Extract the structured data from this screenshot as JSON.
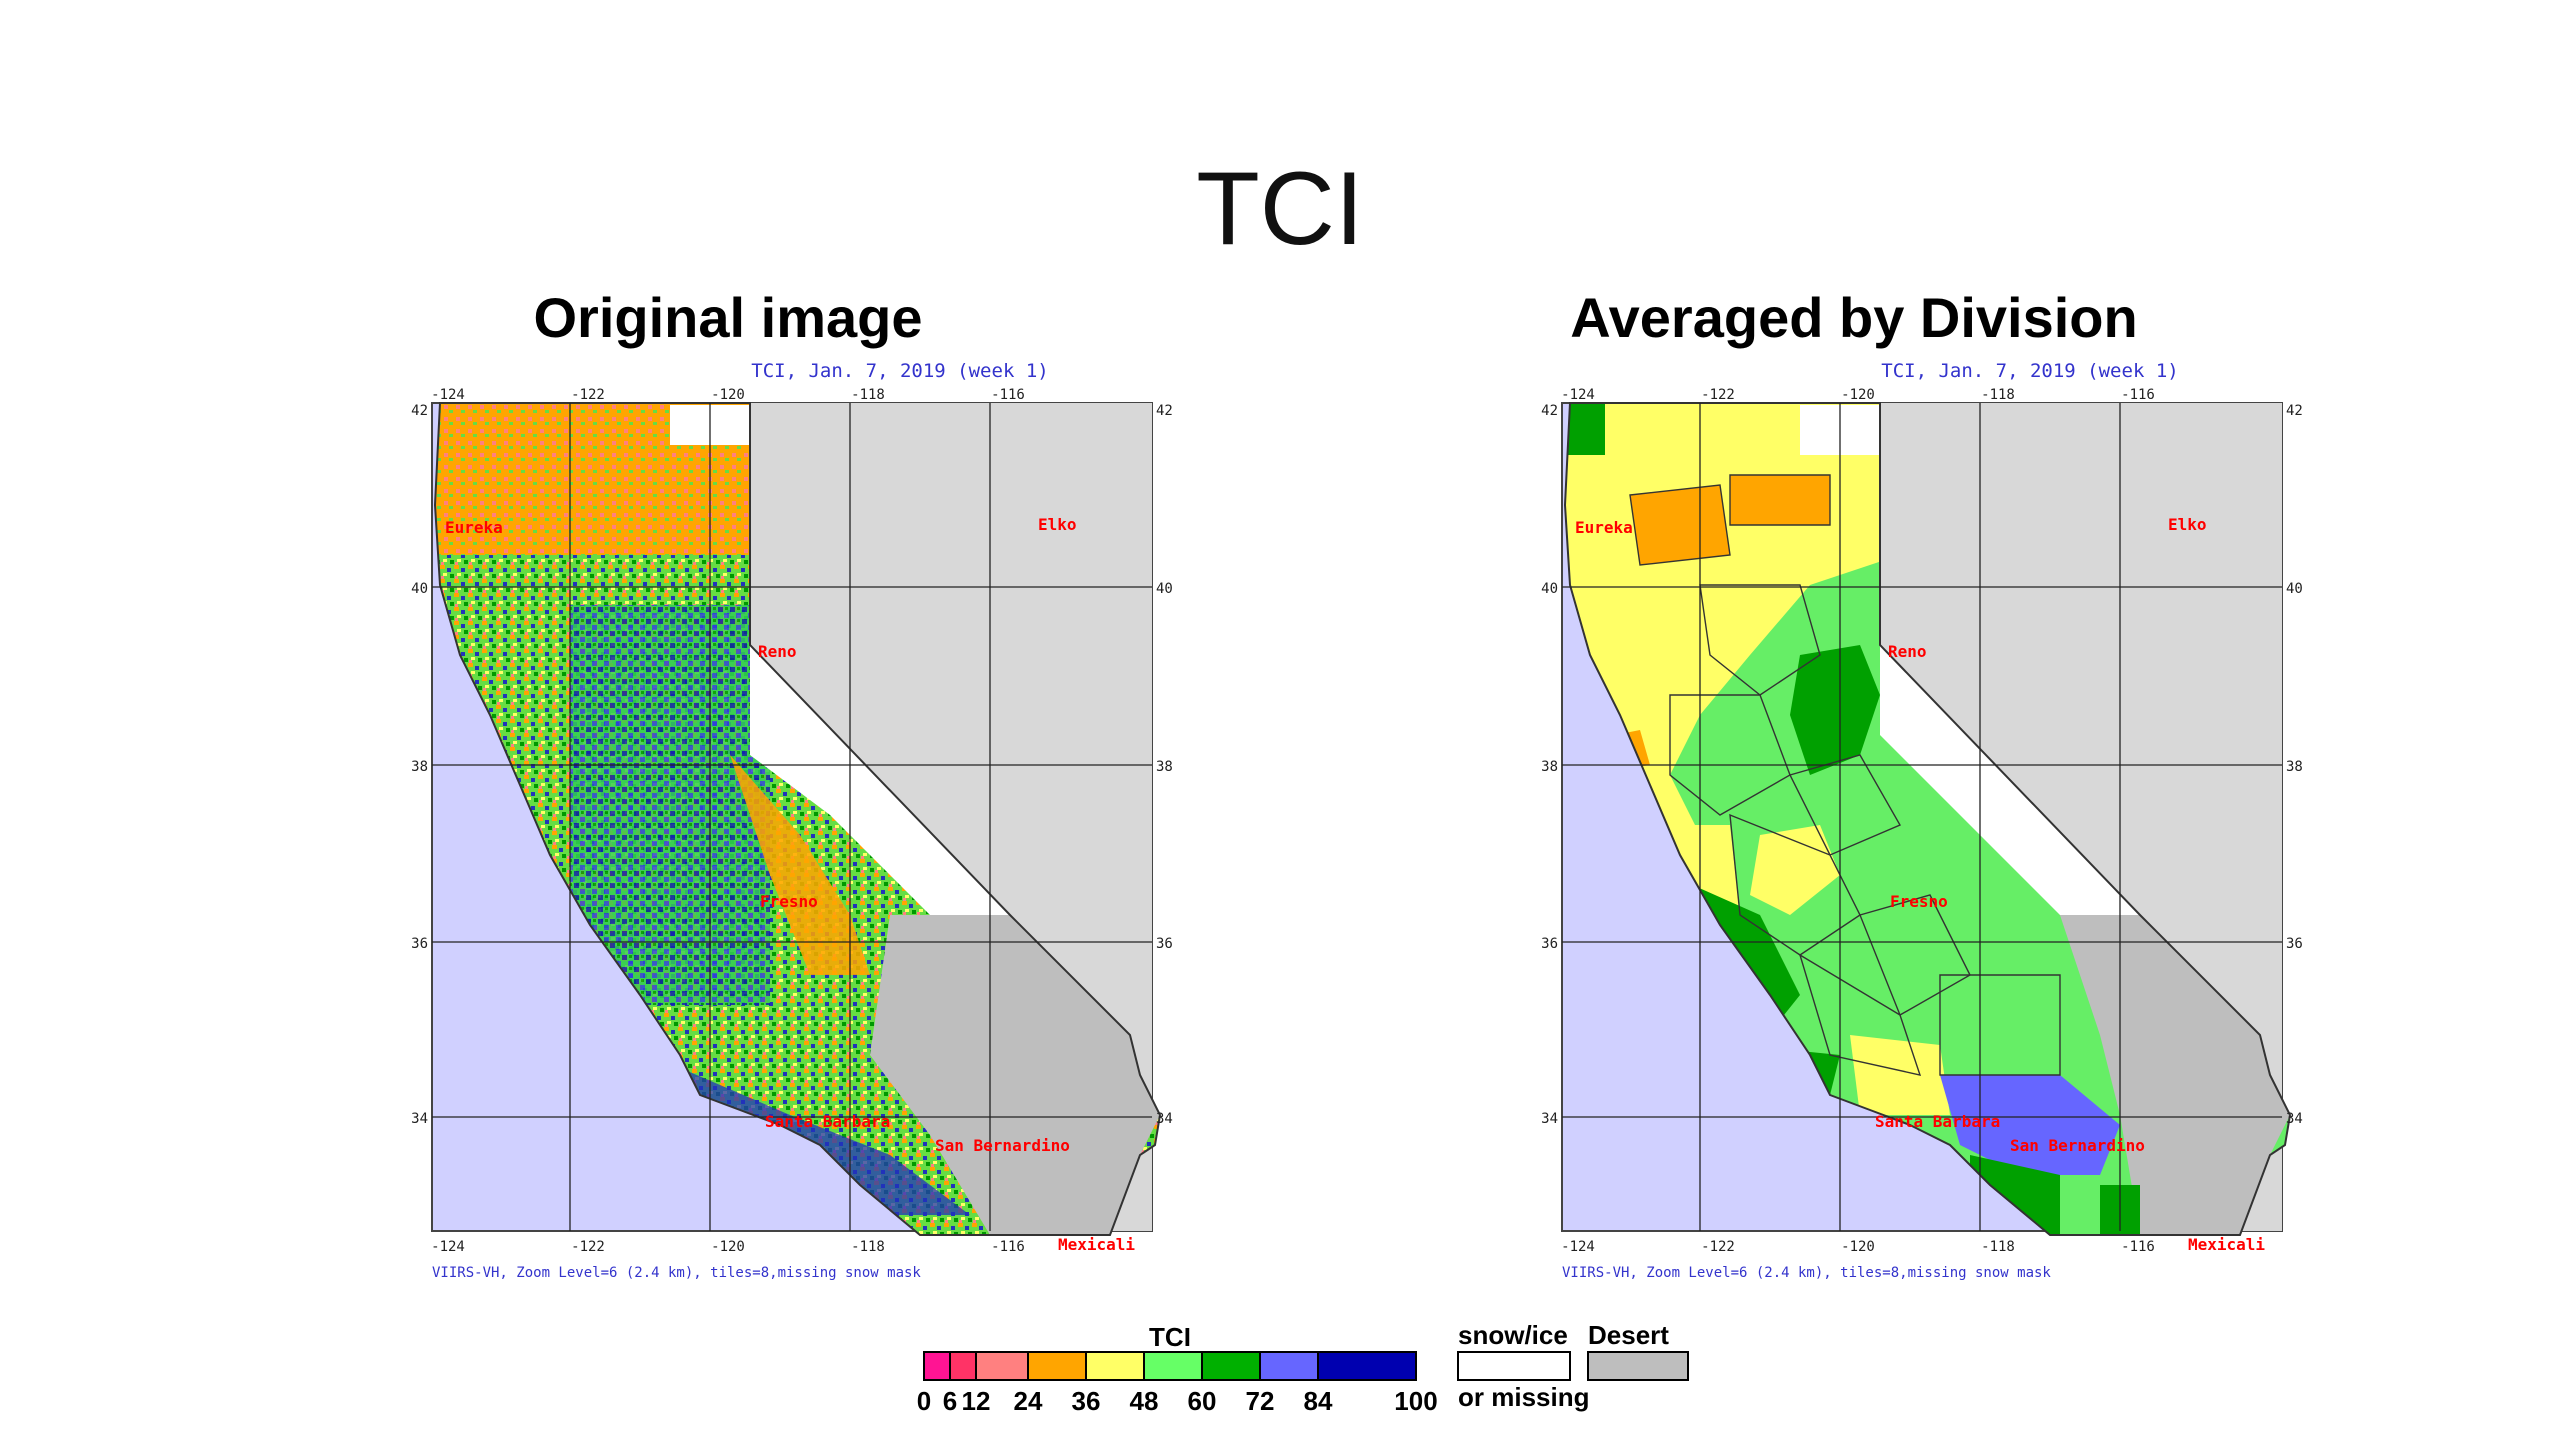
{
  "slide": {
    "title": "TCI"
  },
  "panels": [
    {
      "heading": "Original image",
      "map_title": "TCI, Jan. 7, 2019 (week 1)",
      "footer": "VIIRS-VH, Zoom Level=6 (2.4 km), tiles=8,missing snow mask"
    },
    {
      "heading": "Averaged by Division",
      "map_title": "TCI, Jan. 7, 2019 (week 1)",
      "footer": "VIIRS-VH, Zoom Level=6 (2.4 km), tiles=8,missing snow mask"
    }
  ],
  "axes": {
    "lon_ticks": [
      "-124",
      "-122",
      "-120",
      "-118",
      "-116"
    ],
    "lat_ticks": [
      "42",
      "40",
      "38",
      "36",
      "34"
    ]
  },
  "cities": [
    {
      "name": "Eureka"
    },
    {
      "name": "Elko"
    },
    {
      "name": "Reno"
    },
    {
      "name": "Fresno"
    },
    {
      "name": "Santa Barbara"
    },
    {
      "name": "San Bernardino"
    },
    {
      "name": "Mexicali"
    }
  ],
  "legend": {
    "title": "TCI",
    "tick_labels": [
      "0",
      "6",
      "12",
      "24",
      "36",
      "48",
      "60",
      "72",
      "84",
      "100"
    ],
    "colors": [
      "#ff1493",
      "#ff3366",
      "#ff8080",
      "#ffa500",
      "#ffff66",
      "#66ff66",
      "#00b000",
      "#6666ff",
      "#0000b0"
    ],
    "snow_label_line1": "snow/ice",
    "snow_label_line2": "or missing",
    "desert_label": "Desert",
    "snow_color": "#ffffff",
    "desert_color": "#bebebe"
  },
  "colors": {
    "ocean": "#d0d0ff",
    "nevada": "#d8d8d8",
    "desert": "#bebebe",
    "city_label": "#ff0000",
    "map_text": "#3333cc"
  }
}
